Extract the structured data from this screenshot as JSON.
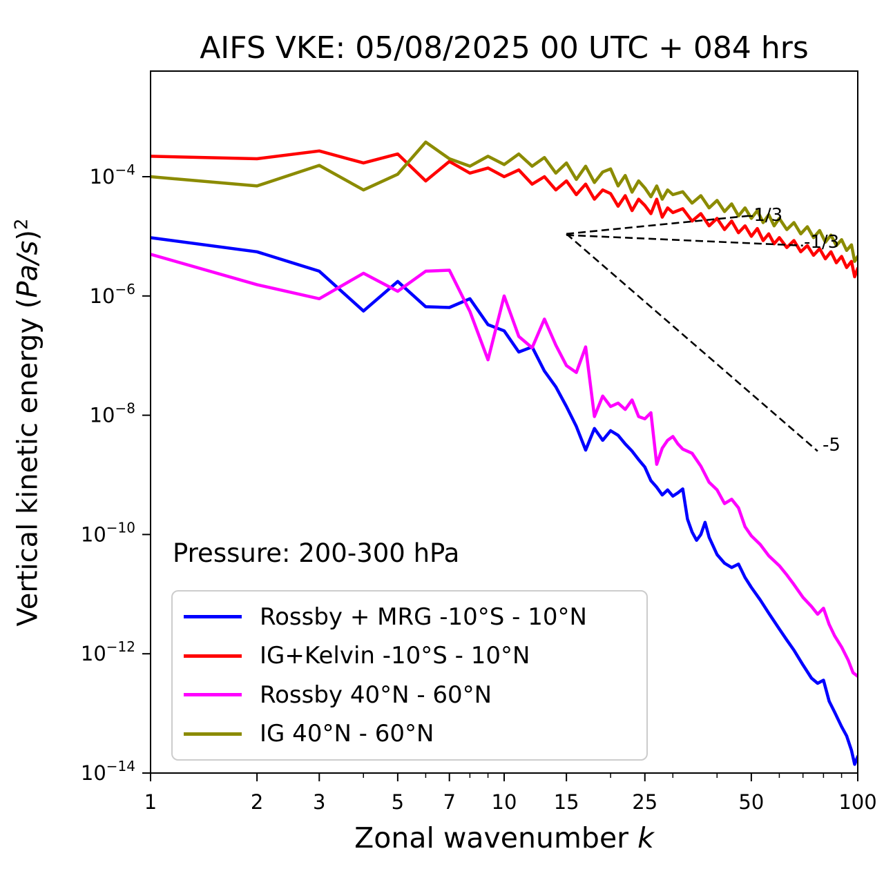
{
  "title": "AIFS VKE: 05/08/2025 00 UTC + 084 hrs",
  "pressure_label": "Pressure: 200-300 hPa",
  "axes": {
    "xlabel": {
      "prefix": "Zonal wavenumber ",
      "math": "k"
    },
    "ylabel": {
      "prefix": "Vertical kinetic energy (",
      "math": "Pa/s",
      "suffix": ")",
      "sup": "2"
    },
    "x_scale": "log",
    "y_scale": "log",
    "x_major_ticks": [
      1,
      2,
      3,
      5,
      7,
      10,
      15,
      25,
      50,
      100
    ],
    "x_tick_labels": [
      "1",
      "2",
      "3",
      "5",
      "7",
      "10",
      "15",
      "25",
      "50",
      "100"
    ],
    "x_minor_ticks": [
      4,
      6,
      8,
      9,
      20,
      30,
      40,
      60,
      70,
      80,
      90
    ],
    "y_ticks": [
      {
        "exp": "−4",
        "value": 0.0001
      },
      {
        "exp": "−6",
        "value": 1e-06
      },
      {
        "exp": "−8",
        "value": 1e-08
      },
      {
        "exp": "−10",
        "value": 1e-10
      },
      {
        "exp": "−12",
        "value": 1e-12
      },
      {
        "exp": "−14",
        "value": 1e-14
      }
    ]
  },
  "annotations": {
    "lines": [
      {
        "from": [
          15,
          1.1e-05
        ],
        "to": [
          49,
          2.2e-05
        ],
        "label": "-1/3"
      },
      {
        "from": [
          15,
          1.05e-05
        ],
        "to": [
          70,
          7e-06
        ],
        "label": "-1/3"
      },
      {
        "from": [
          15,
          1.1e-05
        ],
        "to": [
          77,
          2.5e-09
        ],
        "label": "-5"
      }
    ]
  },
  "legend": [
    {
      "label": "Rossby + MRG -10°S - 10°N"
    },
    {
      "label": "IG+Kelvin -10°S - 10°N"
    },
    {
      "label": "Rossby 40°N - 60°N"
    },
    {
      "label": "IG 40°N - 60°N"
    }
  ],
  "chart_data": {
    "type": "line",
    "title": "AIFS VKE: 05/08/2025 00 UTC + 084 hrs",
    "xlabel": "Zonal wavenumber k",
    "ylabel": "Vertical kinetic energy (Pa/s)^2",
    "xscale": "log",
    "yscale": "log",
    "xlim": [
      1,
      100
    ],
    "ylim": [
      1e-14,
      0.0056
    ],
    "grid": false,
    "legend_position": "lower left",
    "series": [
      {
        "name": "Rossby + MRG -10°S - 10°N",
        "color": "#0000ff",
        "points": [
          [
            1,
            9.5e-06
          ],
          [
            2,
            5.5e-06
          ],
          [
            3,
            2.6e-06
          ],
          [
            4,
            5.6e-07
          ],
          [
            5,
            1.75e-06
          ],
          [
            6,
            6.6e-07
          ],
          [
            7,
            6.4e-07
          ],
          [
            8,
            9e-07
          ],
          [
            9,
            3.3e-07
          ],
          [
            10,
            2.6e-07
          ],
          [
            11,
            1.15e-07
          ],
          [
            12,
            1.4e-07
          ],
          [
            13,
            5.5e-08
          ],
          [
            14,
            3e-08
          ],
          [
            15,
            1.4e-08
          ],
          [
            16,
            6.5e-09
          ],
          [
            17,
            2.6e-09
          ],
          [
            18,
            6e-09
          ],
          [
            19,
            3.8e-09
          ],
          [
            20,
            5.5e-09
          ],
          [
            21,
            4.6e-09
          ],
          [
            22,
            3.3e-09
          ],
          [
            23,
            2.5e-09
          ],
          [
            24,
            1.8e-09
          ],
          [
            25,
            1.35e-09
          ],
          [
            26,
            8e-10
          ],
          [
            27,
            6.2e-10
          ],
          [
            28,
            4.6e-10
          ],
          [
            29,
            5.6e-10
          ],
          [
            30,
            4.4e-10
          ],
          [
            31,
            5e-10
          ],
          [
            32,
            5.8e-10
          ],
          [
            33,
            1.8e-10
          ],
          [
            34,
            1.1e-10
          ],
          [
            35,
            8e-11
          ],
          [
            36,
            1e-10
          ],
          [
            37,
            1.6e-10
          ],
          [
            38,
            9e-11
          ],
          [
            40,
            4.6e-11
          ],
          [
            42,
            3.3e-11
          ],
          [
            44,
            2.8e-11
          ],
          [
            46,
            3.2e-11
          ],
          [
            48,
            1.9e-11
          ],
          [
            50,
            1.3e-11
          ],
          [
            53,
            8e-12
          ],
          [
            56,
            4.8e-12
          ],
          [
            60,
            2.6e-12
          ],
          [
            63,
            1.7e-12
          ],
          [
            66,
            1.15e-12
          ],
          [
            70,
            6.5e-13
          ],
          [
            74,
            3.9e-13
          ],
          [
            77,
            3.2e-13
          ],
          [
            80,
            3.6e-13
          ],
          [
            83,
            1.6e-13
          ],
          [
            86,
            1.05e-13
          ],
          [
            90,
            6e-14
          ],
          [
            93,
            4.2e-14
          ],
          [
            96,
            2.4e-14
          ],
          [
            98,
            1.4e-14
          ],
          [
            100,
            1.9e-14
          ]
        ]
      },
      {
        "name": "IG+Kelvin -10°S - 10°N",
        "color": "#ff0000",
        "points": [
          [
            1,
            0.00022
          ],
          [
            2,
            0.0002
          ],
          [
            3,
            0.00027
          ],
          [
            4,
            0.00017
          ],
          [
            5,
            0.00024
          ],
          [
            6,
            8.5e-05
          ],
          [
            7,
            0.00018
          ],
          [
            8,
            0.000115
          ],
          [
            9,
            0.00014
          ],
          [
            10,
            0.0001
          ],
          [
            11,
            0.00013
          ],
          [
            12,
            7.5e-05
          ],
          [
            13,
            0.0001
          ],
          [
            14,
            6e-05
          ],
          [
            15,
            8.5e-05
          ],
          [
            16,
            5e-05
          ],
          [
            17,
            7.5e-05
          ],
          [
            18,
            4.2e-05
          ],
          [
            19,
            6e-05
          ],
          [
            20,
            5.2e-05
          ],
          [
            21,
            3.2e-05
          ],
          [
            22,
            4.8e-05
          ],
          [
            23,
            2.7e-05
          ],
          [
            24,
            4.2e-05
          ],
          [
            25,
            3.3e-05
          ],
          [
            26,
            2.4e-05
          ],
          [
            27,
            4.2e-05
          ],
          [
            28,
            2.1e-05
          ],
          [
            29,
            3e-05
          ],
          [
            30,
            2.5e-05
          ],
          [
            32,
            2.9e-05
          ],
          [
            34,
            1.8e-05
          ],
          [
            36,
            2.4e-05
          ],
          [
            38,
            1.5e-05
          ],
          [
            40,
            2e-05
          ],
          [
            42,
            1.3e-05
          ],
          [
            44,
            1.8e-05
          ],
          [
            46,
            1.15e-05
          ],
          [
            48,
            1.5e-05
          ],
          [
            50,
            1e-05
          ],
          [
            52,
            1.35e-05
          ],
          [
            54,
            8.5e-06
          ],
          [
            56,
            1.1e-05
          ],
          [
            58,
            7.5e-06
          ],
          [
            60,
            9.5e-06
          ],
          [
            63,
            6.5e-06
          ],
          [
            66,
            8.5e-06
          ],
          [
            69,
            5.5e-06
          ],
          [
            72,
            7e-06
          ],
          [
            75,
            4.8e-06
          ],
          [
            78,
            6.2e-06
          ],
          [
            81,
            4.2e-06
          ],
          [
            84,
            5.5e-06
          ],
          [
            87,
            3.6e-06
          ],
          [
            90,
            4.6e-06
          ],
          [
            93,
            3e-06
          ],
          [
            96,
            3.8e-06
          ],
          [
            98,
            2.1e-06
          ],
          [
            100,
            2.9e-06
          ]
        ]
      },
      {
        "name": "Rossby 40°N - 60°N",
        "color": "#ff00ff",
        "points": [
          [
            1,
            5e-06
          ],
          [
            2,
            1.55e-06
          ],
          [
            3,
            9e-07
          ],
          [
            4,
            2.4e-06
          ],
          [
            5,
            1.2e-06
          ],
          [
            6,
            2.6e-06
          ],
          [
            7,
            2.7e-06
          ],
          [
            8,
            5.5e-07
          ],
          [
            9,
            8.5e-08
          ],
          [
            10,
            1e-06
          ],
          [
            11,
            2.1e-07
          ],
          [
            12,
            1.35e-07
          ],
          [
            13,
            4.1e-07
          ],
          [
            14,
            1.5e-07
          ],
          [
            15,
            6.8e-08
          ],
          [
            16,
            5.2e-08
          ],
          [
            17,
            1.4e-07
          ],
          [
            18,
            9.5e-09
          ],
          [
            19,
            2.1e-08
          ],
          [
            20,
            1.4e-08
          ],
          [
            21,
            1.6e-08
          ],
          [
            22,
            1.25e-08
          ],
          [
            23,
            1.8e-08
          ],
          [
            24,
            9.5e-09
          ],
          [
            25,
            8.7e-09
          ],
          [
            26,
            1.1e-08
          ],
          [
            27,
            1.5e-09
          ],
          [
            28,
            2.8e-09
          ],
          [
            29,
            3.8e-09
          ],
          [
            30,
            4.4e-09
          ],
          [
            31,
            3.3e-09
          ],
          [
            32,
            2.7e-09
          ],
          [
            34,
            2.3e-09
          ],
          [
            36,
            1.4e-09
          ],
          [
            38,
            7.5e-10
          ],
          [
            40,
            5.6e-10
          ],
          [
            42,
            3.3e-10
          ],
          [
            44,
            3.9e-10
          ],
          [
            46,
            2.8e-10
          ],
          [
            48,
            1.35e-10
          ],
          [
            50,
            9.5e-11
          ],
          [
            53,
            6.8e-11
          ],
          [
            56,
            4.4e-11
          ],
          [
            60,
            3e-11
          ],
          [
            63,
            2.1e-11
          ],
          [
            66,
            1.45e-11
          ],
          [
            70,
            8.8e-12
          ],
          [
            74,
            6.2e-12
          ],
          [
            77,
            4.6e-12
          ],
          [
            80,
            5.8e-12
          ],
          [
            83,
            3.1e-12
          ],
          [
            86,
            2e-12
          ],
          [
            90,
            1.3e-12
          ],
          [
            94,
            7.8e-13
          ],
          [
            97,
            4.8e-13
          ],
          [
            100,
            4.2e-13
          ]
        ]
      },
      {
        "name": "IG 40°N - 60°N",
        "color": "#8b8b00",
        "points": [
          [
            1,
            0.0001
          ],
          [
            2,
            7e-05
          ],
          [
            3,
            0.000155
          ],
          [
            4,
            6e-05
          ],
          [
            5,
            0.00011
          ],
          [
            6,
            0.00038
          ],
          [
            7,
            0.0002
          ],
          [
            8,
            0.00015
          ],
          [
            9,
            0.00022
          ],
          [
            10,
            0.00016
          ],
          [
            11,
            0.00024
          ],
          [
            12,
            0.00015
          ],
          [
            13,
            0.00021
          ],
          [
            14,
            0.000115
          ],
          [
            15,
            0.00017
          ],
          [
            16,
            9e-05
          ],
          [
            17,
            0.00015
          ],
          [
            18,
            8e-05
          ],
          [
            19,
            0.00012
          ],
          [
            20,
            0.000135
          ],
          [
            21,
            7e-05
          ],
          [
            22,
            0.000105
          ],
          [
            23,
            5.5e-05
          ],
          [
            24,
            8.5e-05
          ],
          [
            25,
            6.5e-05
          ],
          [
            26,
            4.6e-05
          ],
          [
            27,
            7e-05
          ],
          [
            28,
            4.2e-05
          ],
          [
            29,
            6e-05
          ],
          [
            30,
            5e-05
          ],
          [
            32,
            5.6e-05
          ],
          [
            34,
            3.6e-05
          ],
          [
            36,
            4.8e-05
          ],
          [
            38,
            3e-05
          ],
          [
            40,
            4e-05
          ],
          [
            42,
            2.6e-05
          ],
          [
            44,
            3.5e-05
          ],
          [
            46,
            2.2e-05
          ],
          [
            48,
            3e-05
          ],
          [
            50,
            2e-05
          ],
          [
            52,
            2.7e-05
          ],
          [
            54,
            1.7e-05
          ],
          [
            56,
            2.3e-05
          ],
          [
            58,
            1.5e-05
          ],
          [
            60,
            2e-05
          ],
          [
            63,
            1.3e-05
          ],
          [
            66,
            1.7e-05
          ],
          [
            69,
            1.1e-05
          ],
          [
            72,
            1.45e-05
          ],
          [
            75,
            9.5e-06
          ],
          [
            78,
            1.25e-05
          ],
          [
            81,
            8e-06
          ],
          [
            84,
            1.05e-05
          ],
          [
            87,
            7e-06
          ],
          [
            90,
            8.8e-06
          ],
          [
            93,
            5.8e-06
          ],
          [
            96,
            7.2e-06
          ],
          [
            98,
            3.8e-06
          ],
          [
            100,
            4.6e-06
          ]
        ]
      }
    ]
  }
}
